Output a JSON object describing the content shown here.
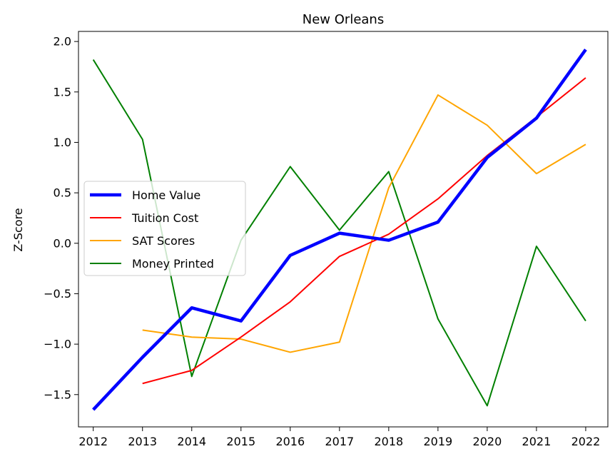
{
  "chart_data": {
    "type": "line",
    "title": "New Orleans",
    "xlabel": "",
    "ylabel": "Z-Score",
    "x": [
      2012,
      2013,
      2014,
      2015,
      2016,
      2017,
      2018,
      2019,
      2020,
      2021,
      2022
    ],
    "xlim": [
      2011.7,
      2022.45
    ],
    "ylim": [
      -1.82,
      2.1
    ],
    "yticks": [
      -1.5,
      -1.0,
      -0.5,
      0.0,
      0.5,
      1.0,
      1.5,
      2.0
    ],
    "ytick_labels": [
      "−1.5",
      "−1.0",
      "−0.5",
      "0.0",
      "0.5",
      "1.0",
      "1.5",
      "2.0"
    ],
    "grid": false,
    "legend_position": "center-left",
    "series": [
      {
        "name": "Home Value",
        "color": "#0000ff",
        "values": [
          -1.65,
          -1.13,
          -0.64,
          -0.77,
          -0.12,
          0.1,
          0.03,
          0.21,
          0.85,
          1.24,
          1.92
        ]
      },
      {
        "name": "Tuition Cost",
        "color": "#ff0000",
        "values": [
          null,
          -1.39,
          -1.26,
          -0.93,
          -0.58,
          -0.13,
          0.09,
          0.44,
          0.87,
          1.25,
          1.64
        ]
      },
      {
        "name": "SAT Scores",
        "color": "#ffa500",
        "values": [
          null,
          -0.86,
          -0.93,
          -0.95,
          -1.08,
          -0.98,
          0.55,
          1.47,
          1.17,
          0.69,
          0.98
        ]
      },
      {
        "name": "Money Printed",
        "color": "#008000",
        "values": [
          1.82,
          1.03,
          -1.32,
          0.03,
          0.76,
          0.13,
          0.71,
          -0.75,
          -1.61,
          -0.03,
          -0.77
        ]
      }
    ]
  }
}
